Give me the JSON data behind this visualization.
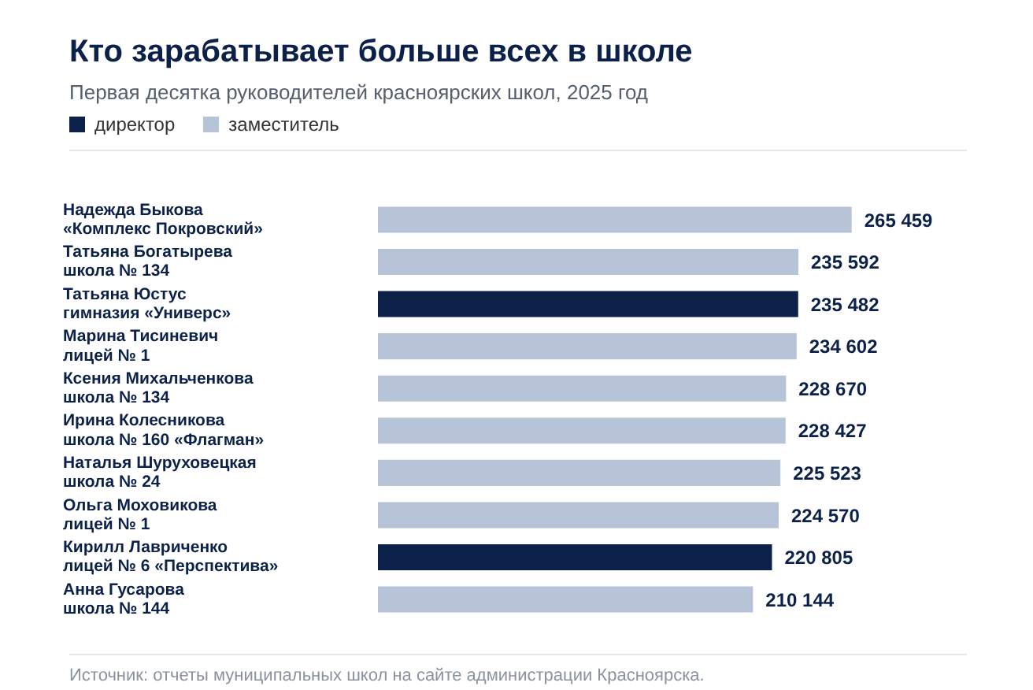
{
  "chart_data": {
    "type": "bar",
    "orientation": "horizontal",
    "stacked": true,
    "title": "Кто зарабатывает больше всех в школе",
    "subtitle": "Первая десятка руководителей красноярских школ, 2025 год",
    "categories": [
      "Надежда Быкова\n«Комплекс Покровский»",
      "Татьяна Богатырева\nшкола № 134",
      "Татьяна Юстус\nгимназия «Универс»",
      "Марина Тисиневич\nлицей № 1",
      "Ксения Михальченкова\nшкола № 134",
      "Ирина Колесникова\nшкола № 160 «Флагман»",
      "Наталья Шуруховецкая\nшкола № 24",
      "Ольга Моховикова\nлицей № 1",
      "Кирилл Лавриченко\nлицей № 6 «Перспектива»",
      "Анна Гусарова\nшкола № 144"
    ],
    "series": [
      {
        "name": "директор",
        "color": "#0c2149",
        "values": [
          null,
          null,
          235482,
          null,
          null,
          null,
          null,
          null,
          220805,
          null
        ],
        "value_labels": [
          null,
          null,
          "235 482",
          null,
          null,
          null,
          null,
          null,
          "220 805",
          null
        ]
      },
      {
        "name": "заместитель",
        "color": "#b7c3d6",
        "values": [
          265459,
          235592,
          null,
          234602,
          228670,
          228427,
          225523,
          224570,
          null,
          210144
        ],
        "value_labels": [
          "265 459",
          "235 592",
          null,
          "234 602",
          "228 670",
          "228 427",
          "225 523",
          "224 570",
          null,
          "210 144"
        ]
      }
    ],
    "legend": "top left",
    "tick_labels": "y",
    "annotations": [
      "Источник: отчеты муниципальных школ на сайте администрации Красноярска."
    ]
  }
}
